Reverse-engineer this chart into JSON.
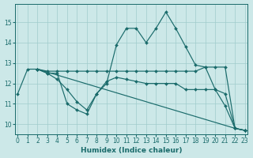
{
  "background_color": "#cce8e8",
  "grid_color": "#a0cccc",
  "line_color": "#1a6b6b",
  "xlabel": "Humidex (Indice chaleur)",
  "xlim": [
    -0.3,
    23.3
  ],
  "ylim": [
    9.5,
    15.9
  ],
  "yticks": [
    10,
    11,
    12,
    13,
    14,
    15
  ],
  "xticks": [
    0,
    1,
    2,
    3,
    4,
    5,
    6,
    7,
    8,
    9,
    10,
    11,
    12,
    13,
    14,
    15,
    16,
    17,
    18,
    19,
    20,
    21,
    22,
    23
  ],
  "line1_x": [
    0,
    1,
    2,
    3,
    4,
    5,
    6,
    7,
    8,
    9,
    10,
    11,
    12,
    13,
    14,
    15,
    16,
    17,
    18,
    19,
    20,
    21,
    22,
    23
  ],
  "line1_y": [
    11.5,
    12.7,
    12.7,
    12.5,
    12.5,
    11.0,
    10.7,
    10.5,
    11.5,
    12.0,
    13.9,
    14.7,
    14.7,
    14.0,
    14.7,
    15.5,
    14.7,
    13.8,
    12.9,
    12.8,
    11.7,
    10.9,
    9.8,
    9.7
  ],
  "line2_x": [
    2,
    3,
    4,
    5,
    6,
    7,
    8,
    9,
    10,
    11,
    12,
    13,
    14,
    15,
    16,
    17,
    18,
    19,
    20,
    21,
    22,
    23
  ],
  "line2_y": [
    12.7,
    12.6,
    12.6,
    12.6,
    12.6,
    12.6,
    12.6,
    12.6,
    12.6,
    12.6,
    12.6,
    12.6,
    12.6,
    12.6,
    12.6,
    12.6,
    12.6,
    12.8,
    12.8,
    12.8,
    9.8,
    9.7
  ],
  "line3_x": [
    2,
    22,
    23
  ],
  "line3_y": [
    12.7,
    9.8,
    9.7
  ],
  "line4_x": [
    2,
    3,
    4,
    5,
    6,
    7,
    8,
    9,
    10,
    11,
    12,
    13,
    14,
    15,
    16,
    17,
    18,
    19,
    20,
    21,
    22,
    23
  ],
  "line4_y": [
    12.7,
    12.5,
    12.2,
    11.7,
    11.1,
    10.7,
    11.5,
    12.1,
    12.3,
    12.2,
    12.1,
    12.0,
    12.0,
    12.0,
    12.0,
    11.7,
    11.7,
    11.7,
    11.7,
    11.5,
    9.8,
    9.7
  ]
}
